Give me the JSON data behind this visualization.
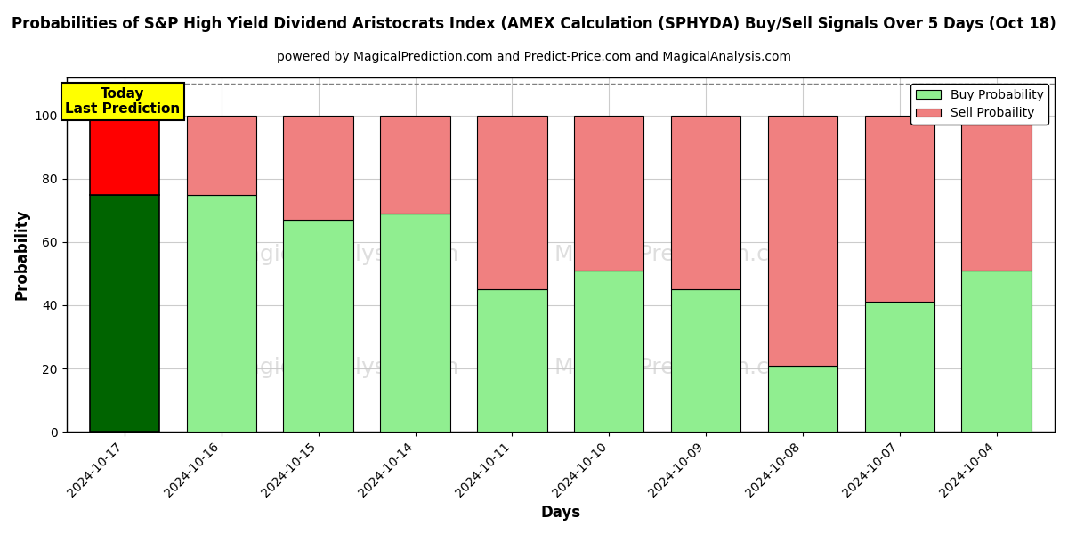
{
  "title": "Probabilities of S&P High Yield Dividend Aristocrats Index (AMEX Calculation (SPHYDA) Buy/Sell Signals Over 5 Days (Oct 18)",
  "subtitle": "powered by MagicalPrediction.com and Predict-Price.com and MagicalAnalysis.com",
  "xlabel": "Days",
  "ylabel": "Probability",
  "categories": [
    "2024-10-17",
    "2024-10-16",
    "2024-10-15",
    "2024-10-14",
    "2024-10-11",
    "2024-10-10",
    "2024-10-09",
    "2024-10-08",
    "2024-10-07",
    "2024-10-04"
  ],
  "buy_values": [
    75,
    75,
    67,
    69,
    45,
    51,
    45,
    21,
    41,
    51
  ],
  "sell_values": [
    25,
    25,
    33,
    31,
    55,
    49,
    55,
    79,
    59,
    49
  ],
  "today_index": 0,
  "today_buy_color": "#006400",
  "today_sell_color": "#ff0000",
  "other_buy_color": "#90EE90",
  "other_sell_color": "#F08080",
  "bar_edge_color": "#000000",
  "ylim": [
    0,
    112
  ],
  "yticks": [
    0,
    20,
    40,
    60,
    80,
    100
  ],
  "dashed_line_y": 110,
  "legend_buy_label": "Buy Probability",
  "legend_sell_label": "Sell Probaility",
  "annotation_text": "Today\nLast Prediction",
  "annotation_color": "#FFFF00",
  "grid_color": "#cccccc",
  "background_color": "#ffffff",
  "figsize": [
    12,
    6
  ],
  "dpi": 100
}
